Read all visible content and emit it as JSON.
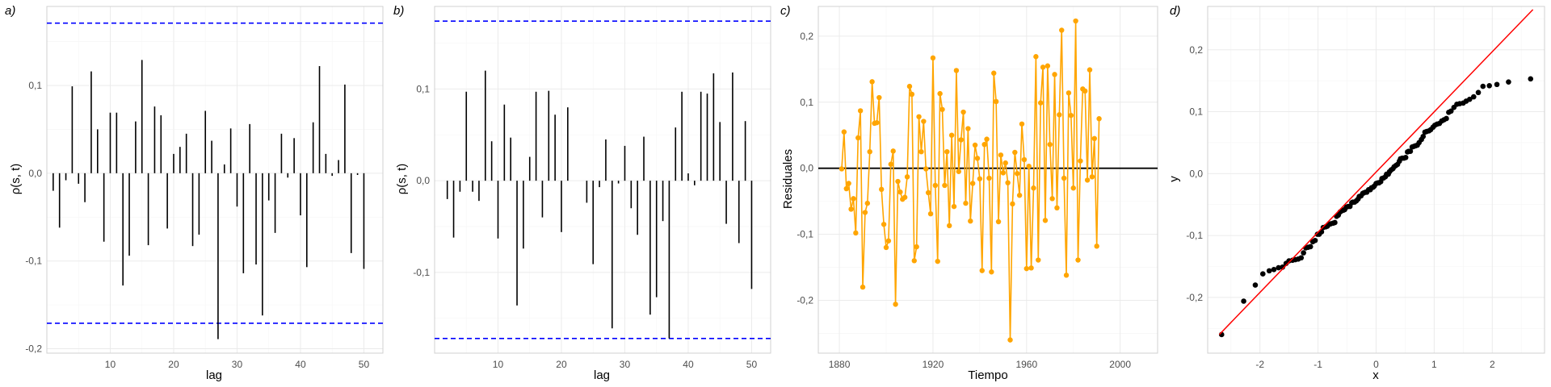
{
  "chart_data": [
    {
      "type": "bar",
      "panel_label": "a)",
      "xlabel": "lag",
      "ylabel": "ρ(s, t)",
      "xlim": [
        0,
        53
      ],
      "ylim": [
        -0.205,
        0.19
      ],
      "x_ticks": [
        10,
        20,
        30,
        40,
        50
      ],
      "x_tick_labels": [
        "10",
        "20",
        "30",
        "40",
        "50"
      ],
      "y_ticks": [
        -0.2,
        -0.1,
        0.0,
        0.1
      ],
      "y_tick_labels": [
        "-0,2",
        "-0,1",
        "0,0",
        "0,1"
      ],
      "hlines": [
        {
          "value": 0.171,
          "color": "#0000ff",
          "dashed": true
        },
        {
          "value": -0.171,
          "color": "#0000ff",
          "dashed": true
        }
      ],
      "x": [
        1,
        2,
        3,
        4,
        5,
        6,
        7,
        8,
        9,
        10,
        11,
        12,
        13,
        14,
        15,
        16,
        17,
        18,
        19,
        20,
        21,
        22,
        23,
        24,
        25,
        26,
        27,
        28,
        29,
        30,
        31,
        32,
        33,
        34,
        35,
        36,
        37,
        38,
        39,
        40,
        41,
        42,
        43,
        44,
        45,
        46,
        47,
        48,
        49,
        50
      ],
      "values": [
        -0.02,
        -0.062,
        -0.008,
        0.099,
        -0.012,
        -0.033,
        0.116,
        0.05,
        -0.078,
        0.069,
        0.069,
        -0.128,
        -0.094,
        0.059,
        0.129,
        -0.082,
        0.076,
        0.066,
        -0.063,
        0.022,
        0.03,
        0.045,
        -0.083,
        -0.07,
        0.071,
        0.037,
        -0.189,
        0.01,
        0.051,
        -0.038,
        -0.114,
        0.056,
        -0.104,
        -0.162,
        -0.031,
        -0.068,
        0.045,
        -0.005,
        0.04,
        -0.048,
        -0.107,
        0.058,
        0.122,
        0.022,
        -0.003,
        0.015,
        0.101,
        -0.091,
        -0.002,
        -0.109
      ],
      "bar_color": "#000000"
    },
    {
      "type": "bar",
      "panel_label": "b)",
      "xlabel": "lag",
      "ylabel": "ρ(s, t)",
      "xlim": [
        0,
        53
      ],
      "ylim": [
        -0.188,
        0.19
      ],
      "x_ticks": [
        10,
        20,
        30,
        40,
        50
      ],
      "x_tick_labels": [
        "10",
        "20",
        "30",
        "40",
        "50"
      ],
      "y_ticks": [
        -0.1,
        0.0,
        0.1
      ],
      "y_tick_labels": [
        "-0,1",
        "0,0",
        "0,1"
      ],
      "hlines": [
        {
          "value": 0.174,
          "color": "#0000ff",
          "dashed": true
        },
        {
          "value": -0.172,
          "color": "#0000ff",
          "dashed": true
        }
      ],
      "x": [
        1,
        2,
        3,
        4,
        5,
        6,
        7,
        8,
        9,
        10,
        11,
        12,
        13,
        14,
        15,
        16,
        17,
        18,
        19,
        20,
        21,
        22,
        23,
        24,
        25,
        26,
        27,
        28,
        29,
        30,
        31,
        32,
        33,
        34,
        35,
        36,
        37,
        38,
        39,
        40,
        41,
        42,
        43,
        44,
        45,
        46,
        47,
        48,
        49,
        50
      ],
      "values": [
        0.0,
        -0.02,
        -0.062,
        -0.012,
        0.097,
        -0.012,
        -0.022,
        0.12,
        0.043,
        -0.063,
        0.083,
        0.047,
        -0.136,
        -0.074,
        0.026,
        0.097,
        -0.04,
        0.098,
        0.072,
        -0.056,
        0.08,
        0.0,
        0.0,
        -0.024,
        -0.091,
        -0.007,
        0.045,
        -0.161,
        -0.003,
        0.038,
        -0.03,
        -0.059,
        0.048,
        -0.146,
        -0.127,
        -0.044,
        -0.172,
        0.058,
        0.097,
        0.008,
        -0.005,
        0.097,
        0.095,
        0.117,
        0.064,
        -0.047,
        0.118,
        -0.068,
        0.065,
        -0.118
      ],
      "bar_color": "#000000"
    },
    {
      "type": "line",
      "panel_label": "c)",
      "xlabel": "Tiempo",
      "ylabel": "Residuales",
      "xlim": [
        1871,
        2016
      ],
      "ylim": [
        -0.28,
        0.245
      ],
      "x_ticks": [
        1880,
        1920,
        1960,
        2000
      ],
      "x_tick_labels": [
        "1880",
        "1920",
        "1960",
        "2000"
      ],
      "y_ticks": [
        -0.2,
        -0.1,
        0.0,
        0.1,
        0.2
      ],
      "y_tick_labels": [
        "-0,2",
        "-0,1",
        "0,0",
        "0,1",
        "0,2"
      ],
      "hlines": [
        {
          "value": 0,
          "color": "#000000",
          "dashed": false
        }
      ],
      "series": [
        {
          "color": "#ffa500",
          "x_start": 1881,
          "values": [
            -0.001,
            0.055,
            -0.031,
            -0.023,
            -0.062,
            -0.046,
            -0.098,
            0.046,
            0.087,
            -0.18,
            -0.067,
            -0.053,
            0.025,
            0.131,
            0.068,
            0.069,
            0.107,
            -0.032,
            -0.085,
            -0.12,
            -0.11,
            0.006,
            0.026,
            -0.206,
            -0.02,
            -0.036,
            -0.047,
            -0.044,
            -0.013,
            0.124,
            0.112,
            -0.14,
            -0.119,
            0.078,
            0.025,
            0.071,
            -0.001,
            -0.037,
            -0.069,
            0.167,
            -0.026,
            -0.141,
            0.113,
            0.089,
            -0.026,
            0.025,
            -0.087,
            0.05,
            -0.058,
            0.148,
            -0.005,
            0.043,
            0.085,
            -0.053,
            0.06,
            -0.08,
            -0.023,
            0.035,
            0.015,
            -0.016,
            -0.155,
            0.036,
            0.044,
            -0.015,
            -0.157,
            0.144,
            0.101,
            -0.081,
            0.02,
            -0.007,
            0.008,
            -0.022,
            -0.26,
            -0.054,
            0.024,
            -0.008,
            -0.041,
            0.067,
            0.013,
            -0.152,
            0.003,
            -0.151,
            -0.03,
            0.169,
            -0.139,
            0.099,
            0.153,
            -0.079,
            0.155,
            0.036,
            -0.046,
            0.142,
            -0.06,
            0.081,
            0.209,
            -0.015,
            -0.162,
            0.114,
            0.08,
            -0.03,
            0.223,
            -0.139,
            0.011,
            0.12,
            0.117,
            -0.018,
            0.149,
            -0.013,
            0.045,
            -0.118,
            0.075
          ]
        }
      ]
    },
    {
      "type": "scatter",
      "panel_label": "d)",
      "xlabel": "x",
      "ylabel": "y",
      "xlim": [
        -2.9,
        2.9
      ],
      "ylim": [
        -0.29,
        0.27
      ],
      "x_ticks": [
        -2,
        -1,
        0,
        1,
        2
      ],
      "x_tick_labels": [
        "-2",
        "-1",
        "0",
        "1",
        "2"
      ],
      "y_ticks": [
        -0.2,
        -0.1,
        0.0,
        0.1,
        0.2
      ],
      "y_tick_labels": [
        "-0,2",
        "-0,1",
        "0,0",
        "0,1",
        "0,2"
      ],
      "reference_line": {
        "x": [
          -2.7,
          2.7
        ],
        "y": [
          -0.26,
          0.265
        ],
        "color": "#ff0000"
      },
      "point_color": "#000000",
      "points": [
        [
          -2.66,
          -0.26
        ],
        [
          -2.28,
          -0.206
        ],
        [
          -2.08,
          -0.18
        ],
        [
          -1.95,
          -0.162
        ],
        [
          -1.84,
          -0.157
        ],
        [
          -1.76,
          -0.155
        ],
        [
          -1.68,
          -0.152
        ],
        [
          -1.61,
          -0.151
        ],
        [
          -1.55,
          -0.145
        ],
        [
          -1.5,
          -0.141
        ],
        [
          -1.44,
          -0.14
        ],
        [
          -1.39,
          -0.139
        ],
        [
          -1.34,
          -0.138
        ],
        [
          -1.29,
          -0.136
        ],
        [
          -1.25,
          -0.128
        ],
        [
          -1.21,
          -0.12
        ],
        [
          -1.17,
          -0.119
        ],
        [
          -1.13,
          -0.118
        ],
        [
          -1.09,
          -0.11
        ],
        [
          -1.05,
          -0.108
        ],
        [
          -1.01,
          -0.098
        ],
        [
          -0.98,
          -0.098
        ],
        [
          -0.94,
          -0.094
        ],
        [
          -0.91,
          -0.087
        ],
        [
          -0.87,
          -0.086
        ],
        [
          -0.84,
          -0.085
        ],
        [
          -0.81,
          -0.082
        ],
        [
          -0.78,
          -0.081
        ],
        [
          -0.74,
          -0.08
        ],
        [
          -0.71,
          -0.079
        ],
        [
          -0.68,
          -0.069
        ],
        [
          -0.65,
          -0.067
        ],
        [
          -0.62,
          -0.062
        ],
        [
          -0.59,
          -0.06
        ],
        [
          -0.56,
          -0.059
        ],
        [
          -0.54,
          -0.058
        ],
        [
          -0.51,
          -0.054
        ],
        [
          -0.48,
          -0.053
        ],
        [
          -0.45,
          -0.053
        ],
        [
          -0.42,
          -0.047
        ],
        [
          -0.4,
          -0.046
        ],
        [
          -0.37,
          -0.046
        ],
        [
          -0.34,
          -0.044
        ],
        [
          -0.31,
          -0.041
        ],
        [
          -0.29,
          -0.037
        ],
        [
          -0.26,
          -0.036
        ],
        [
          -0.23,
          -0.032
        ],
        [
          -0.21,
          -0.031
        ],
        [
          -0.18,
          -0.03
        ],
        [
          -0.16,
          -0.03
        ],
        [
          -0.13,
          -0.026
        ],
        [
          -0.1,
          -0.026
        ],
        [
          -0.08,
          -0.023
        ],
        [
          -0.05,
          -0.022
        ],
        [
          -0.03,
          -0.02
        ],
        [
          0.0,
          -0.016
        ],
        [
          0.03,
          -0.015
        ],
        [
          0.05,
          -0.015
        ],
        [
          0.08,
          -0.013
        ],
        [
          0.1,
          -0.008
        ],
        [
          0.13,
          -0.007
        ],
        [
          0.16,
          -0.005
        ],
        [
          0.18,
          -0.001
        ],
        [
          0.21,
          -0.001
        ],
        [
          0.23,
          0.003
        ],
        [
          0.26,
          0.006
        ],
        [
          0.29,
          0.008
        ],
        [
          0.31,
          0.011
        ],
        [
          0.34,
          0.013
        ],
        [
          0.37,
          0.015
        ],
        [
          0.4,
          0.02
        ],
        [
          0.42,
          0.024
        ],
        [
          0.45,
          0.025
        ],
        [
          0.48,
          0.025
        ],
        [
          0.51,
          0.026
        ],
        [
          0.54,
          0.035
        ],
        [
          0.56,
          0.036
        ],
        [
          0.59,
          0.036
        ],
        [
          0.62,
          0.043
        ],
        [
          0.65,
          0.044
        ],
        [
          0.68,
          0.045
        ],
        [
          0.71,
          0.046
        ],
        [
          0.74,
          0.05
        ],
        [
          0.78,
          0.055
        ],
        [
          0.81,
          0.06
        ],
        [
          0.84,
          0.067
        ],
        [
          0.87,
          0.068
        ],
        [
          0.91,
          0.069
        ],
        [
          0.94,
          0.071
        ],
        [
          0.98,
          0.075
        ],
        [
          1.01,
          0.078
        ],
        [
          1.05,
          0.08
        ],
        [
          1.09,
          0.081
        ],
        [
          1.13,
          0.085
        ],
        [
          1.17,
          0.087
        ],
        [
          1.21,
          0.089
        ],
        [
          1.25,
          0.099
        ],
        [
          1.29,
          0.101
        ],
        [
          1.34,
          0.107
        ],
        [
          1.39,
          0.112
        ],
        [
          1.44,
          0.113
        ],
        [
          1.5,
          0.114
        ],
        [
          1.55,
          0.117
        ],
        [
          1.61,
          0.12
        ],
        [
          1.68,
          0.124
        ],
        [
          1.76,
          0.131
        ],
        [
          1.84,
          0.141
        ],
        [
          1.95,
          0.142
        ],
        [
          2.08,
          0.144
        ],
        [
          2.28,
          0.148
        ],
        [
          2.66,
          0.153
        ]
      ]
    }
  ]
}
